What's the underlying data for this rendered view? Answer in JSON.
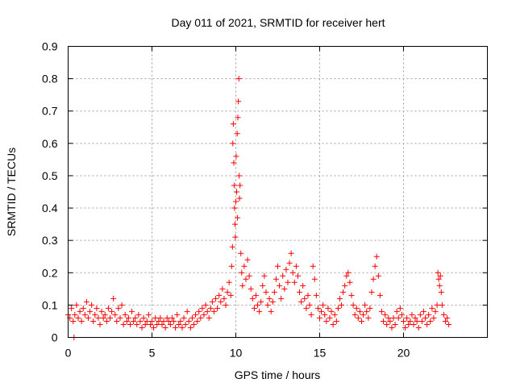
{
  "chart_data": {
    "type": "scatter",
    "title": "Day 011 of 2021, SRMTID for receiver hert",
    "xlabel": "GPS time / hours",
    "ylabel": "SRMTID / TECUs",
    "xlim": [
      0,
      25
    ],
    "ylim": [
      0,
      0.9
    ],
    "grid": true,
    "marker": "+",
    "series_color": "#ff0000",
    "x_ticks": [
      0,
      5,
      10,
      15,
      20
    ],
    "x_tick_labels": [
      "0",
      "5",
      "10",
      "15",
      "20"
    ],
    "y_ticks": [
      0,
      0.1,
      0.2,
      0.3,
      0.4,
      0.5,
      0.6,
      0.7,
      0.8,
      0.9
    ],
    "y_tick_labels": [
      "0",
      "0.1",
      "0.2",
      "0.3",
      "0.4",
      "0.5",
      "0.6",
      "0.7",
      "0.8",
      "0.9"
    ],
    "series": [
      {
        "name": "SRMTID",
        "points": [
          [
            0.0,
            0.07
          ],
          [
            0.1,
            0.06
          ],
          [
            0.2,
            0.09
          ],
          [
            0.3,
            0.05
          ],
          [
            0.35,
            0.0
          ],
          [
            0.4,
            0.07
          ],
          [
            0.5,
            0.1
          ],
          [
            0.6,
            0.06
          ],
          [
            0.7,
            0.08
          ],
          [
            0.8,
            0.05
          ],
          [
            0.9,
            0.09
          ],
          [
            1.0,
            0.07
          ],
          [
            1.1,
            0.11
          ],
          [
            1.2,
            0.06
          ],
          [
            1.3,
            0.08
          ],
          [
            1.4,
            0.1
          ],
          [
            1.5,
            0.05
          ],
          [
            1.6,
            0.07
          ],
          [
            1.7,
            0.09
          ],
          [
            1.8,
            0.06
          ],
          [
            1.9,
            0.04
          ],
          [
            2.0,
            0.08
          ],
          [
            2.1,
            0.06
          ],
          [
            2.2,
            0.07
          ],
          [
            2.3,
            0.05
          ],
          [
            2.4,
            0.09
          ],
          [
            2.5,
            0.06
          ],
          [
            2.6,
            0.08
          ],
          [
            2.7,
            0.12
          ],
          [
            2.8,
            0.07
          ],
          [
            2.9,
            0.05
          ],
          [
            3.0,
            0.09
          ],
          [
            3.1,
            0.06
          ],
          [
            3.2,
            0.1
          ],
          [
            3.3,
            0.04
          ],
          [
            3.4,
            0.07
          ],
          [
            3.5,
            0.05
          ],
          [
            3.6,
            0.06
          ],
          [
            3.7,
            0.04
          ],
          [
            3.8,
            0.08
          ],
          [
            3.9,
            0.05
          ],
          [
            4.0,
            0.06
          ],
          [
            4.1,
            0.04
          ],
          [
            4.2,
            0.07
          ],
          [
            4.3,
            0.05
          ],
          [
            4.4,
            0.03
          ],
          [
            4.5,
            0.06
          ],
          [
            4.6,
            0.04
          ],
          [
            4.7,
            0.05
          ],
          [
            4.8,
            0.07
          ],
          [
            4.9,
            0.04
          ],
          [
            5.0,
            0.05
          ],
          [
            5.1,
            0.03
          ],
          [
            5.2,
            0.06
          ],
          [
            5.3,
            0.04
          ],
          [
            5.4,
            0.05
          ],
          [
            5.5,
            0.06
          ],
          [
            5.6,
            0.04
          ],
          [
            5.7,
            0.05
          ],
          [
            5.8,
            0.03
          ],
          [
            5.9,
            0.06
          ],
          [
            6.0,
            0.05
          ],
          [
            6.1,
            0.04
          ],
          [
            6.2,
            0.06
          ],
          [
            6.3,
            0.05
          ],
          [
            6.4,
            0.03
          ],
          [
            6.5,
            0.07
          ],
          [
            6.6,
            0.04
          ],
          [
            6.7,
            0.05
          ],
          [
            6.8,
            0.03
          ],
          [
            6.9,
            0.06
          ],
          [
            7.0,
            0.04
          ],
          [
            7.1,
            0.08
          ],
          [
            7.2,
            0.05
          ],
          [
            7.3,
            0.03
          ],
          [
            7.4,
            0.06
          ],
          [
            7.5,
            0.04
          ],
          [
            7.6,
            0.07
          ],
          [
            7.7,
            0.05
          ],
          [
            7.8,
            0.08
          ],
          [
            7.9,
            0.06
          ],
          [
            8.0,
            0.09
          ],
          [
            8.1,
            0.07
          ],
          [
            8.2,
            0.1
          ],
          [
            8.3,
            0.08
          ],
          [
            8.4,
            0.06
          ],
          [
            8.5,
            0.09
          ],
          [
            8.6,
            0.11
          ],
          [
            8.7,
            0.08
          ],
          [
            8.8,
            0.12
          ],
          [
            8.9,
            0.09
          ],
          [
            9.0,
            0.13
          ],
          [
            9.1,
            0.11
          ],
          [
            9.2,
            0.15
          ],
          [
            9.3,
            0.12
          ],
          [
            9.4,
            0.1
          ],
          [
            9.5,
            0.14
          ],
          [
            9.6,
            0.17
          ],
          [
            9.7,
            0.13
          ],
          [
            9.75,
            0.22
          ],
          [
            9.8,
            0.28
          ],
          [
            9.82,
            0.6
          ],
          [
            9.85,
            0.66
          ],
          [
            9.88,
            0.54
          ],
          [
            9.9,
            0.47
          ],
          [
            9.92,
            0.4
          ],
          [
            9.95,
            0.35
          ],
          [
            9.97,
            0.31
          ],
          [
            10.0,
            0.42
          ],
          [
            10.02,
            0.56
          ],
          [
            10.05,
            0.45
          ],
          [
            10.08,
            0.63
          ],
          [
            10.1,
            0.37
          ],
          [
            10.12,
            0.68
          ],
          [
            10.15,
            0.73
          ],
          [
            10.18,
            0.8
          ],
          [
            10.2,
            0.5
          ],
          [
            10.22,
            0.43
          ],
          [
            10.25,
            0.47
          ],
          [
            10.3,
            0.26
          ],
          [
            10.35,
            0.2
          ],
          [
            10.4,
            0.16
          ],
          [
            10.5,
            0.22
          ],
          [
            10.6,
            0.18
          ],
          [
            10.7,
            0.24
          ],
          [
            10.8,
            0.19
          ],
          [
            10.9,
            0.15
          ],
          [
            11.0,
            0.12
          ],
          [
            11.1,
            0.09
          ],
          [
            11.2,
            0.13
          ],
          [
            11.3,
            0.1
          ],
          [
            11.4,
            0.08
          ],
          [
            11.5,
            0.11
          ],
          [
            11.6,
            0.16
          ],
          [
            11.7,
            0.19
          ],
          [
            11.8,
            0.14
          ],
          [
            11.9,
            0.1
          ],
          [
            12.0,
            0.12
          ],
          [
            12.1,
            0.08
          ],
          [
            12.2,
            0.11
          ],
          [
            12.3,
            0.14
          ],
          [
            12.4,
            0.18
          ],
          [
            12.5,
            0.22
          ],
          [
            12.6,
            0.16
          ],
          [
            12.7,
            0.12
          ],
          [
            12.8,
            0.19
          ],
          [
            12.9,
            0.15
          ],
          [
            13.0,
            0.21
          ],
          [
            13.1,
            0.17
          ],
          [
            13.2,
            0.23
          ],
          [
            13.3,
            0.26
          ],
          [
            13.4,
            0.2
          ],
          [
            13.5,
            0.17
          ],
          [
            13.6,
            0.22
          ],
          [
            13.7,
            0.19
          ],
          [
            13.8,
            0.14
          ],
          [
            13.9,
            0.11
          ],
          [
            14.0,
            0.16
          ],
          [
            14.1,
            0.12
          ],
          [
            14.2,
            0.09
          ],
          [
            14.3,
            0.13
          ],
          [
            14.4,
            0.1
          ],
          [
            14.5,
            0.07
          ],
          [
            14.6,
            0.22
          ],
          [
            14.7,
            0.18
          ],
          [
            14.8,
            0.13
          ],
          [
            14.9,
            0.09
          ],
          [
            15.0,
            0.06
          ],
          [
            15.1,
            0.08
          ],
          [
            15.2,
            0.1
          ],
          [
            15.3,
            0.07
          ],
          [
            15.4,
            0.05
          ],
          [
            15.5,
            0.09
          ],
          [
            15.6,
            0.06
          ],
          [
            15.7,
            0.08
          ],
          [
            15.8,
            0.04
          ],
          [
            15.9,
            0.07
          ],
          [
            16.0,
            0.05
          ],
          [
            16.1,
            0.09
          ],
          [
            16.2,
            0.12
          ],
          [
            16.3,
            0.1
          ],
          [
            16.4,
            0.14
          ],
          [
            16.5,
            0.16
          ],
          [
            16.6,
            0.19
          ],
          [
            16.7,
            0.2
          ],
          [
            16.8,
            0.17
          ],
          [
            16.9,
            0.13
          ],
          [
            17.0,
            0.1
          ],
          [
            17.1,
            0.07
          ],
          [
            17.2,
            0.09
          ],
          [
            17.3,
            0.06
          ],
          [
            17.4,
            0.08
          ],
          [
            17.5,
            0.05
          ],
          [
            17.6,
            0.07
          ],
          [
            17.7,
            0.1
          ],
          [
            17.8,
            0.08
          ],
          [
            17.9,
            0.06
          ],
          [
            18.0,
            0.09
          ],
          [
            18.1,
            0.14
          ],
          [
            18.2,
            0.18
          ],
          [
            18.3,
            0.22
          ],
          [
            18.4,
            0.25
          ],
          [
            18.5,
            0.19
          ],
          [
            18.6,
            0.13
          ],
          [
            18.7,
            0.08
          ],
          [
            18.8,
            0.05
          ],
          [
            18.9,
            0.07
          ],
          [
            19.0,
            0.04
          ],
          [
            19.1,
            0.06
          ],
          [
            19.2,
            0.05
          ],
          [
            19.3,
            0.03
          ],
          [
            19.4,
            0.06
          ],
          [
            19.5,
            0.04
          ],
          [
            19.6,
            0.08
          ],
          [
            19.7,
            0.06
          ],
          [
            19.8,
            0.09
          ],
          [
            19.9,
            0.07
          ],
          [
            20.0,
            0.05
          ],
          [
            20.1,
            0.03
          ],
          [
            20.2,
            0.06
          ],
          [
            20.3,
            0.04
          ],
          [
            20.4,
            0.05
          ],
          [
            20.5,
            0.07
          ],
          [
            20.6,
            0.04
          ],
          [
            20.7,
            0.06
          ],
          [
            20.8,
            0.05
          ],
          [
            20.9,
            0.03
          ],
          [
            21.0,
            0.07
          ],
          [
            21.1,
            0.05
          ],
          [
            21.2,
            0.08
          ],
          [
            21.3,
            0.06
          ],
          [
            21.4,
            0.04
          ],
          [
            21.5,
            0.07
          ],
          [
            21.6,
            0.05
          ],
          [
            21.7,
            0.09
          ],
          [
            21.8,
            0.06
          ],
          [
            21.9,
            0.08
          ],
          [
            22.0,
            0.1
          ],
          [
            22.05,
            0.2
          ],
          [
            22.1,
            0.18
          ],
          [
            22.15,
            0.16
          ],
          [
            22.2,
            0.19
          ],
          [
            22.25,
            0.14
          ],
          [
            22.3,
            0.1
          ],
          [
            22.4,
            0.07
          ],
          [
            22.5,
            0.05
          ],
          [
            22.6,
            0.06
          ],
          [
            22.7,
            0.04
          ]
        ]
      }
    ]
  }
}
